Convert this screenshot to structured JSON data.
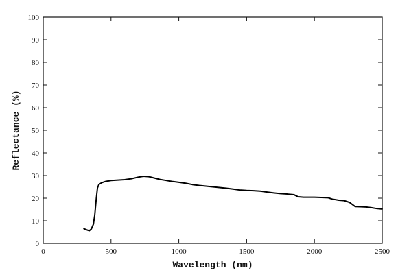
{
  "chart_data": {
    "type": "line",
    "title": "",
    "xlabel": "Wavelength (nm)",
    "ylabel": "Reflectance (%)",
    "xlim": [
      0,
      2500
    ],
    "ylim": [
      0,
      100
    ],
    "xticks": [
      0,
      500,
      1000,
      1500,
      2000,
      2500
    ],
    "yticks": [
      0,
      10,
      20,
      30,
      40,
      50,
      60,
      70,
      80,
      90,
      100
    ],
    "grid": false,
    "legend": "none",
    "series": [
      {
        "color": "#000000",
        "points": [
          [
            300,
            6.5
          ],
          [
            320,
            6.0
          ],
          [
            340,
            5.6
          ],
          [
            355,
            6.4
          ],
          [
            370,
            8.5
          ],
          [
            380,
            12.5
          ],
          [
            390,
            19.0
          ],
          [
            400,
            24.5
          ],
          [
            410,
            26.0
          ],
          [
            430,
            26.8
          ],
          [
            460,
            27.4
          ],
          [
            500,
            27.8
          ],
          [
            550,
            28.0
          ],
          [
            600,
            28.2
          ],
          [
            650,
            28.6
          ],
          [
            700,
            29.3
          ],
          [
            740,
            29.7
          ],
          [
            780,
            29.5
          ],
          [
            820,
            28.9
          ],
          [
            860,
            28.3
          ],
          [
            900,
            27.9
          ],
          [
            950,
            27.4
          ],
          [
            1000,
            27.0
          ],
          [
            1050,
            26.6
          ],
          [
            1100,
            26.0
          ],
          [
            1150,
            25.6
          ],
          [
            1200,
            25.3
          ],
          [
            1250,
            25.0
          ],
          [
            1300,
            24.7
          ],
          [
            1350,
            24.4
          ],
          [
            1400,
            24.0
          ],
          [
            1450,
            23.6
          ],
          [
            1500,
            23.4
          ],
          [
            1550,
            23.3
          ],
          [
            1600,
            23.1
          ],
          [
            1650,
            22.7
          ],
          [
            1700,
            22.3
          ],
          [
            1750,
            22.0
          ],
          [
            1800,
            21.8
          ],
          [
            1850,
            21.5
          ],
          [
            1880,
            20.6
          ],
          [
            1920,
            20.4
          ],
          [
            1950,
            20.4
          ],
          [
            2000,
            20.4
          ],
          [
            2050,
            20.3
          ],
          [
            2100,
            20.2
          ],
          [
            2130,
            19.6
          ],
          [
            2180,
            19.1
          ],
          [
            2220,
            18.9
          ],
          [
            2260,
            18.1
          ],
          [
            2300,
            16.3
          ],
          [
            2340,
            16.2
          ],
          [
            2380,
            16.1
          ],
          [
            2420,
            15.8
          ],
          [
            2460,
            15.4
          ],
          [
            2500,
            15.2
          ]
        ]
      }
    ]
  }
}
